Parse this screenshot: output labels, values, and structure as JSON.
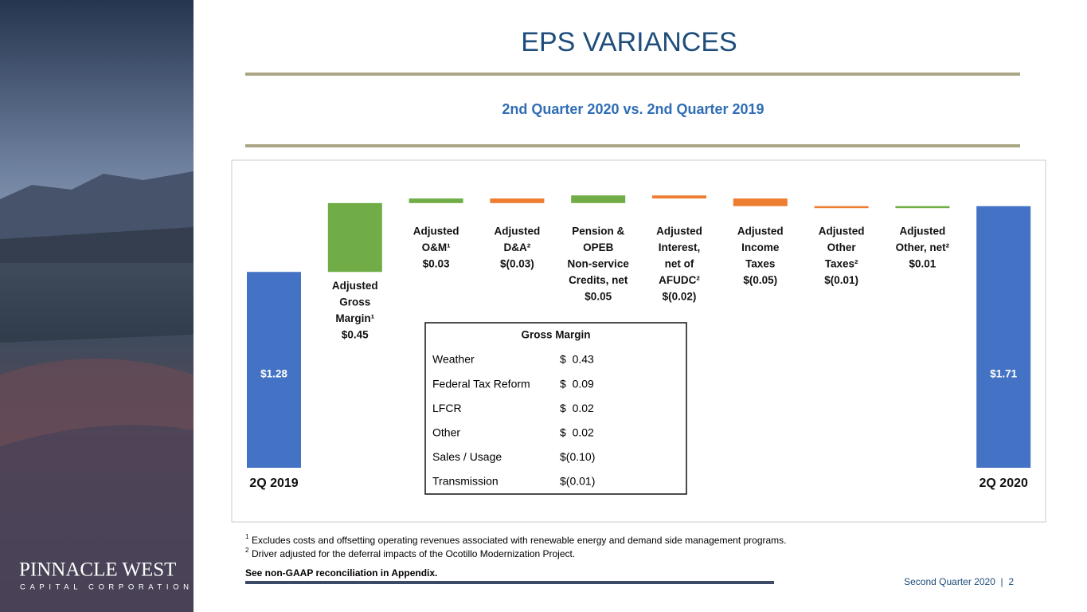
{
  "title": "EPS VARIANCES",
  "subtitle": "2nd Quarter 2020 vs. 2nd Quarter 2019",
  "chart_data": {
    "type": "waterfall",
    "categories": [
      [
        "2Q 2019"
      ],
      [
        "Adjusted",
        "Gross",
        "Margin¹"
      ],
      [
        "Adjusted",
        "O&M¹"
      ],
      [
        "Adjusted",
        "D&A²"
      ],
      [
        "Pension &",
        "OPEB",
        "Non-service",
        "Credits, net"
      ],
      [
        "Adjusted",
        "Interest,",
        "net of",
        "AFUDC²"
      ],
      [
        "Adjusted",
        "Income",
        "Taxes"
      ],
      [
        "Adjusted",
        "Other",
        "Taxes²"
      ],
      [
        "Adjusted",
        "Other, net²"
      ],
      [
        "2Q 2020"
      ]
    ],
    "kinds": [
      "total",
      "step",
      "step",
      "step",
      "step",
      "step",
      "step",
      "step",
      "step",
      "total"
    ],
    "values": [
      1.28,
      0.45,
      0.03,
      -0.03,
      0.05,
      -0.02,
      -0.05,
      -0.01,
      0.01,
      1.71
    ],
    "value_labels": [
      "$1.28",
      "$0.45",
      "$0.03",
      "$(0.03)",
      "$0.05",
      "$(0.02)",
      "$(0.05)",
      "$(0.01)",
      "$0.01",
      "$1.71"
    ],
    "colors": {
      "total": "#4472c4",
      "increase": "#70ad47",
      "decrease": "#ed7d31"
    }
  },
  "gross_margin_table": {
    "title": "Gross Margin",
    "rows": [
      [
        "Weather",
        "$  0.43"
      ],
      [
        "Federal Tax Reform",
        "$  0.09"
      ],
      [
        "LFCR",
        "$  0.02"
      ],
      [
        "Other",
        "$  0.02"
      ],
      [
        "Sales / Usage",
        "$(0.10)"
      ],
      [
        "Transmission",
        "$(0.01)"
      ]
    ]
  },
  "footnotes": [
    {
      "marker": "1",
      "text": "Excludes costs and offsetting operating revenues associated with renewable energy and demand side management programs."
    },
    {
      "marker": "2",
      "text": "Driver adjusted for the deferral impacts of the  Ocotillo Modernization Project."
    }
  ],
  "reconciliation_note": "See non-GAAP reconciliation in Appendix.",
  "footer": "Second Quarter 2020  |  2",
  "logo": {
    "name": "PINNACLE WEST",
    "tagline": "CAPITAL CORPORATION"
  }
}
